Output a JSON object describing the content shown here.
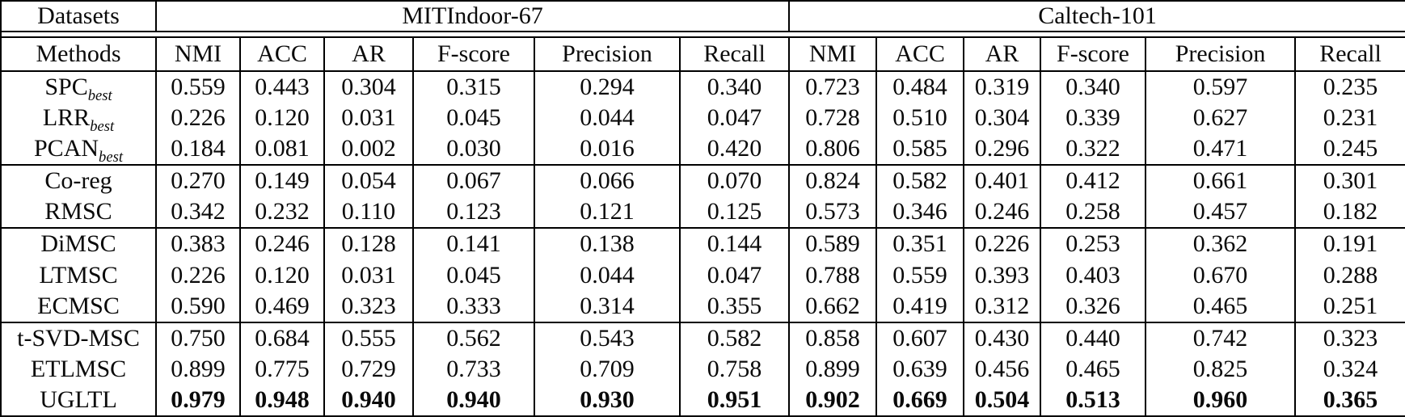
{
  "colors": {
    "background": "#ffffff",
    "text": "#0a0a0a",
    "border": "#000000"
  },
  "table": {
    "corner_label": "Datasets",
    "methods_label": "Methods",
    "dataset_groups": [
      {
        "label": "MITIndoor-67"
      },
      {
        "label": "Caltech-101"
      }
    ],
    "metric_headers": [
      "NMI",
      "ACC",
      "AR",
      "F-score",
      "Precision",
      "Recall"
    ],
    "row_groups": [
      {
        "rows": [
          {
            "method": "SPC",
            "method_sub": "best",
            "bold_values": false,
            "mitindoor": [
              "0.559",
              "0.443",
              "0.304",
              "0.315",
              "0.294",
              "0.340"
            ],
            "caltech": [
              "0.723",
              "0.484",
              "0.319",
              "0.340",
              "0.597",
              "0.235"
            ]
          },
          {
            "method": "LRR",
            "method_sub": "best",
            "bold_values": false,
            "mitindoor": [
              "0.226",
              "0.120",
              "0.031",
              "0.045",
              "0.044",
              "0.047"
            ],
            "caltech": [
              "0.728",
              "0.510",
              "0.304",
              "0.339",
              "0.627",
              "0.231"
            ]
          },
          {
            "method": "PCAN",
            "method_sub": "best",
            "bold_values": false,
            "mitindoor": [
              "0.184",
              "0.081",
              "0.002",
              "0.030",
              "0.016",
              "0.420"
            ],
            "caltech": [
              "0.806",
              "0.585",
              "0.296",
              "0.322",
              "0.471",
              "0.245"
            ]
          }
        ]
      },
      {
        "rows": [
          {
            "method": "Co-reg",
            "method_sub": "",
            "bold_values": false,
            "mitindoor": [
              "0.270",
              "0.149",
              "0.054",
              "0.067",
              "0.066",
              "0.070"
            ],
            "caltech": [
              "0.824",
              "0.582",
              "0.401",
              "0.412",
              "0.661",
              "0.301"
            ]
          },
          {
            "method": "RMSC",
            "method_sub": "",
            "bold_values": false,
            "mitindoor": [
              "0.342",
              "0.232",
              "0.110",
              "0.123",
              "0.121",
              "0.125"
            ],
            "caltech": [
              "0.573",
              "0.346",
              "0.246",
              "0.258",
              "0.457",
              "0.182"
            ]
          }
        ]
      },
      {
        "rows": [
          {
            "method": "DiMSC",
            "method_sub": "",
            "bold_values": false,
            "mitindoor": [
              "0.383",
              "0.246",
              "0.128",
              "0.141",
              "0.138",
              "0.144"
            ],
            "caltech": [
              "0.589",
              "0.351",
              "0.226",
              "0.253",
              "0.362",
              "0.191"
            ]
          },
          {
            "method": "LTMSC",
            "method_sub": "",
            "bold_values": false,
            "mitindoor": [
              "0.226",
              "0.120",
              "0.031",
              "0.045",
              "0.044",
              "0.047"
            ],
            "caltech": [
              "0.788",
              "0.559",
              "0.393",
              "0.403",
              "0.670",
              "0.288"
            ]
          },
          {
            "method": "ECMSC",
            "method_sub": "",
            "bold_values": false,
            "mitindoor": [
              "0.590",
              "0.469",
              "0.323",
              "0.333",
              "0.314",
              "0.355"
            ],
            "caltech": [
              "0.662",
              "0.419",
              "0.312",
              "0.326",
              "0.465",
              "0.251"
            ]
          }
        ]
      },
      {
        "rows": [
          {
            "method": "t-SVD-MSC",
            "method_sub": "",
            "bold_values": false,
            "mitindoor": [
              "0.750",
              "0.684",
              "0.555",
              "0.562",
              "0.543",
              "0.582"
            ],
            "caltech": [
              "0.858",
              "0.607",
              "0.430",
              "0.440",
              "0.742",
              "0.323"
            ]
          },
          {
            "method": "ETLMSC",
            "method_sub": "",
            "bold_values": false,
            "mitindoor": [
              "0.899",
              "0.775",
              "0.729",
              "0.733",
              "0.709",
              "0.758"
            ],
            "caltech": [
              "0.899",
              "0.639",
              "0.456",
              "0.465",
              "0.825",
              "0.324"
            ]
          },
          {
            "method": "UGLTL",
            "method_sub": "",
            "bold_values": true,
            "mitindoor": [
              "0.979",
              "0.948",
              "0.940",
              "0.940",
              "0.930",
              "0.951"
            ],
            "caltech": [
              "0.902",
              "0.669",
              "0.504",
              "0.513",
              "0.960",
              "0.365"
            ]
          }
        ]
      }
    ]
  }
}
